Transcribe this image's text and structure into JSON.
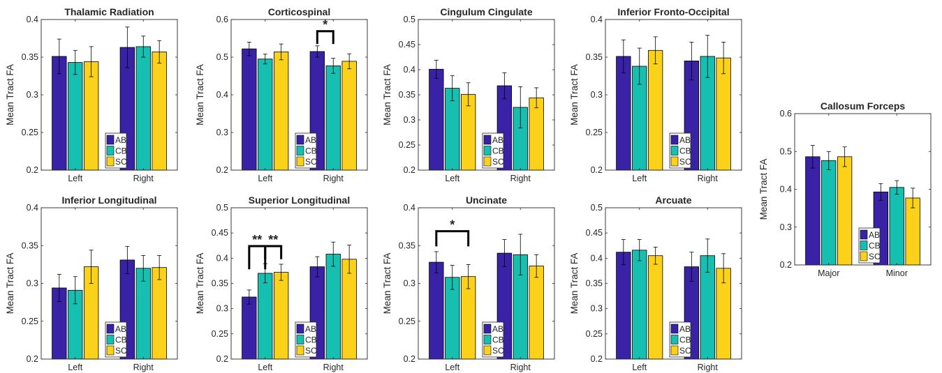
{
  "colors": {
    "AB": "#3a22a6",
    "CB": "#17bfb0",
    "SC": "#fcd11a"
  },
  "chart_data": [
    {
      "type": "bar",
      "title": "Thalamic Radiation",
      "ylabel": "Mean Tract FA",
      "categories": [
        "Left",
        "Right"
      ],
      "ylim": [
        0.2,
        0.4
      ],
      "yticks": [
        "0.2",
        "0.25",
        "0.3",
        "0.35",
        "0.4"
      ],
      "series": [
        {
          "name": "AB",
          "values": [
            0.351,
            0.363
          ],
          "err": [
            0.023,
            0.027
          ]
        },
        {
          "name": "CB",
          "values": [
            0.343,
            0.364
          ],
          "err": [
            0.016,
            0.014
          ]
        },
        {
          "name": "SC",
          "values": [
            0.344,
            0.357
          ],
          "err": [
            0.02,
            0.015
          ]
        }
      ],
      "annotations": []
    },
    {
      "type": "bar",
      "title": "Corticospinal",
      "ylabel": "Mean Tract FA",
      "categories": [
        "Left",
        "Right"
      ],
      "ylim": [
        0.2,
        0.6
      ],
      "yticks": [
        "0.2",
        "0.3",
        "0.4",
        "0.5",
        "0.6"
      ],
      "series": [
        {
          "name": "AB",
          "values": [
            0.522,
            0.515
          ],
          "err": [
            0.018,
            0.015
          ]
        },
        {
          "name": "CB",
          "values": [
            0.495,
            0.477
          ],
          "err": [
            0.013,
            0.02
          ]
        },
        {
          "name": "SC",
          "values": [
            0.514,
            0.489
          ],
          "err": [
            0.021,
            0.02
          ]
        }
      ],
      "annotations": [
        {
          "label": "*",
          "group": 1,
          "from": 0,
          "to": 1,
          "y": 0.569,
          "drop": 0.034
        }
      ]
    },
    {
      "type": "bar",
      "title": "Cingulum Cingulate",
      "ylabel": "Mean Tract FA",
      "categories": [
        "Left",
        "Right"
      ],
      "ylim": [
        0.2,
        0.5
      ],
      "yticks": [
        "0.2",
        "0.25",
        "0.3",
        "0.35",
        "0.4",
        "0.45",
        "0.5"
      ],
      "series": [
        {
          "name": "AB",
          "values": [
            0.401,
            0.368
          ],
          "err": [
            0.018,
            0.026
          ]
        },
        {
          "name": "CB",
          "values": [
            0.363,
            0.325
          ],
          "err": [
            0.025,
            0.041
          ]
        },
        {
          "name": "SC",
          "values": [
            0.351,
            0.344
          ],
          "err": [
            0.023,
            0.02
          ]
        }
      ],
      "annotations": []
    },
    {
      "type": "bar",
      "title": "Inferior Fronto-Occipital",
      "ylabel": "Mean Tract FA",
      "categories": [
        "Left",
        "Right"
      ],
      "ylim": [
        0.2,
        0.4
      ],
      "yticks": [
        "0.2",
        "0.25",
        "0.3",
        "0.35",
        "0.4"
      ],
      "series": [
        {
          "name": "AB",
          "values": [
            0.351,
            0.345
          ],
          "err": [
            0.022,
            0.025
          ]
        },
        {
          "name": "CB",
          "values": [
            0.338,
            0.351
          ],
          "err": [
            0.024,
            0.028
          ]
        },
        {
          "name": "SC",
          "values": [
            0.359,
            0.349
          ],
          "err": [
            0.018,
            0.021
          ]
        }
      ],
      "annotations": []
    },
    {
      "type": "bar",
      "title": "Callosum Forceps",
      "ylabel": "Mean Tract FA",
      "categories": [
        "Major",
        "Minor"
      ],
      "ylim": [
        0.2,
        0.6
      ],
      "yticks": [
        "0.2",
        "0.3",
        "0.4",
        "0.5",
        "0.6"
      ],
      "series": [
        {
          "name": "AB",
          "values": [
            0.486,
            0.393
          ],
          "err": [
            0.03,
            0.022
          ]
        },
        {
          "name": "CB",
          "values": [
            0.476,
            0.405
          ],
          "err": [
            0.024,
            0.018
          ]
        },
        {
          "name": "SC",
          "values": [
            0.486,
            0.377
          ],
          "err": [
            0.026,
            0.026
          ]
        }
      ],
      "annotations": []
    },
    {
      "type": "bar",
      "title": "Inferior Longitudinal",
      "ylabel": "Mean Tract FA",
      "categories": [
        "Left",
        "Right"
      ],
      "ylim": [
        0.2,
        0.4
      ],
      "yticks": [
        "0.2",
        "0.25",
        "0.3",
        "0.35",
        "0.4"
      ],
      "series": [
        {
          "name": "AB",
          "values": [
            0.294,
            0.331
          ],
          "err": [
            0.018,
            0.018
          ]
        },
        {
          "name": "CB",
          "values": [
            0.291,
            0.32
          ],
          "err": [
            0.018,
            0.017
          ]
        },
        {
          "name": "SC",
          "values": [
            0.322,
            0.321
          ],
          "err": [
            0.022,
            0.016
          ]
        }
      ],
      "annotations": []
    },
    {
      "type": "bar",
      "title": "Superior Longitudinal",
      "ylabel": "Mean Tract FA",
      "categories": [
        "Left",
        "Right"
      ],
      "ylim": [
        0.2,
        0.5
      ],
      "yticks": [
        "0.2",
        "0.25",
        "0.3",
        "0.35",
        "0.4",
        "0.45",
        "0.5"
      ],
      "series": [
        {
          "name": "AB",
          "values": [
            0.323,
            0.383
          ],
          "err": [
            0.014,
            0.02
          ]
        },
        {
          "name": "CB",
          "values": [
            0.37,
            0.408
          ],
          "err": [
            0.019,
            0.024
          ]
        },
        {
          "name": "SC",
          "values": [
            0.372,
            0.398
          ],
          "err": [
            0.016,
            0.028
          ]
        }
      ],
      "annotations": [
        {
          "label": "**",
          "group": 0,
          "from": 0,
          "to": 1,
          "y": 0.424,
          "drop": 0.046
        },
        {
          "label": "**",
          "group": 0,
          "from": 1,
          "to": 2,
          "y": 0.424,
          "drop": 0.026
        }
      ]
    },
    {
      "type": "bar",
      "title": "Uncinate",
      "ylabel": "Mean Tract FA",
      "categories": [
        "Left",
        "Right"
      ],
      "ylim": [
        0.2,
        0.4
      ],
      "yticks": [
        "0.2",
        "0.25",
        "0.3",
        "0.35",
        "0.4"
      ],
      "series": [
        {
          "name": "AB",
          "values": [
            0.328,
            0.34
          ],
          "err": [
            0.014,
            0.018
          ]
        },
        {
          "name": "CB",
          "values": [
            0.308,
            0.338
          ],
          "err": [
            0.016,
            0.027
          ]
        },
        {
          "name": "SC",
          "values": [
            0.309,
            0.323
          ],
          "err": [
            0.016,
            0.015
          ]
        }
      ],
      "annotations": [
        {
          "label": "*",
          "group": 0,
          "from": 0,
          "to": 2,
          "y": 0.369,
          "drop": 0.02
        }
      ]
    },
    {
      "type": "bar",
      "title": "Arcuate",
      "ylabel": "Mean Tract FA",
      "categories": [
        "Left",
        "Right"
      ],
      "ylim": [
        0.2,
        0.5
      ],
      "yticks": [
        "0.2",
        "0.25",
        "0.3",
        "0.35",
        "0.4",
        "0.45",
        "0.5"
      ],
      "series": [
        {
          "name": "AB",
          "values": [
            0.412,
            0.383
          ],
          "err": [
            0.025,
            0.029
          ]
        },
        {
          "name": "CB",
          "values": [
            0.416,
            0.405
          ],
          "err": [
            0.021,
            0.033
          ]
        },
        {
          "name": "SC",
          "values": [
            0.405,
            0.38
          ],
          "err": [
            0.017,
            0.029
          ]
        }
      ],
      "annotations": []
    }
  ]
}
